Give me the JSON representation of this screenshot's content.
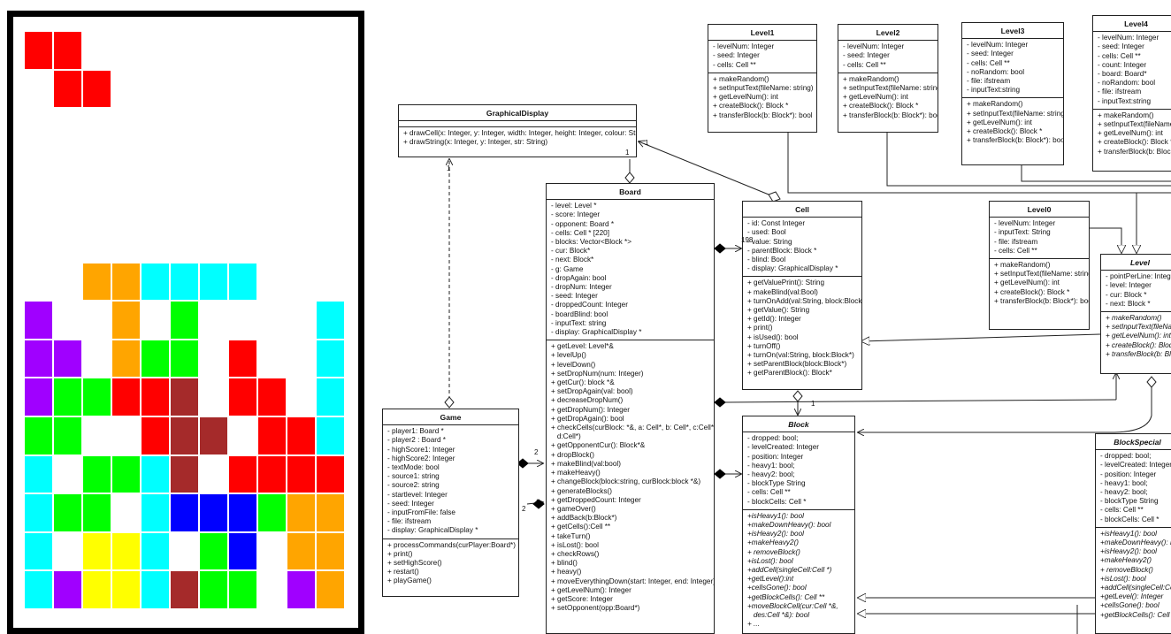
{
  "tetris": {
    "colors": {
      "red": "#ff0000",
      "orange": "#ffa500",
      "cyan": "#00ffff",
      "purple": "#a000ff",
      "green": "#00ff00",
      "darkred": "#a52a2a",
      "blue": "#0000ff",
      "yellow": "#ffff00"
    },
    "rows": [
      [
        "red",
        "red",
        "",
        "",
        "",
        "",
        "",
        "",
        "",
        "",
        ""
      ],
      [
        "",
        "red",
        "red",
        "",
        "",
        "",
        "",
        "",
        "",
        "",
        ""
      ],
      [
        "",
        "",
        "",
        "",
        "",
        "",
        "",
        "",
        "",
        "",
        ""
      ],
      [
        "",
        "",
        "",
        "",
        "",
        "",
        "",
        "",
        "",
        "",
        ""
      ],
      [
        "",
        "",
        "",
        "",
        "",
        "",
        "",
        "",
        "",
        "",
        ""
      ],
      [
        "",
        "",
        "",
        "",
        "",
        "",
        "",
        "",
        "",
        "",
        ""
      ],
      [
        "",
        "",
        "orange",
        "orange",
        "cyan",
        "cyan",
        "cyan",
        "cyan",
        "",
        "",
        ""
      ],
      [
        "purple",
        "",
        "",
        "orange",
        "",
        "green",
        "",
        "",
        "",
        "",
        "cyan"
      ],
      [
        "purple",
        "purple",
        "",
        "orange",
        "green",
        "green",
        "",
        "red",
        "",
        "",
        "cyan"
      ],
      [
        "purple",
        "green",
        "green",
        "red",
        "red",
        "darkred",
        "",
        "red",
        "red",
        "",
        "cyan"
      ],
      [
        "green",
        "green",
        "",
        "",
        "red",
        "darkred",
        "darkred",
        "",
        "red",
        "red",
        "cyan"
      ],
      [
        "cyan",
        "",
        "green",
        "green",
        "cyan",
        "darkred",
        "",
        "red",
        "red",
        "red",
        "red"
      ],
      [
        "cyan",
        "green",
        "green",
        "",
        "cyan",
        "blue",
        "blue",
        "blue",
        "green",
        "orange",
        "orange"
      ],
      [
        "cyan",
        "",
        "yellow",
        "yellow",
        "cyan",
        "",
        "green",
        "blue",
        "",
        "orange",
        "orange"
      ],
      [
        "cyan",
        "purple",
        "yellow",
        "yellow",
        "cyan",
        "darkred",
        "green",
        "green",
        "",
        "purple",
        "orange"
      ]
    ]
  },
  "classes": {
    "graphical": {
      "name": "GraphicalDisplay",
      "attrs": [],
      "methods": [
        "+ drawCell(x: Integer, y: Integer, width: Integer, height: Integer, colour: String)",
        "+ drawString(x: Integer, y: Integer, str: String)"
      ]
    },
    "board": {
      "name": "Board",
      "attrs": [
        "- level: Level *",
        "- score: Integer",
        "- opponent: Board *",
        "- cells: Cell * [220]",
        "- blocks: Vector<Block *>",
        "- cur: Block*",
        "- next: Block*",
        "- g: Game",
        "- dropAgain: bool",
        "- dropNum: Integer",
        "- seed: Integer",
        "- droppedCount: Integer",
        "- boardBlind: bool",
        "- inputText: string",
        "- display: GraphicalDisplay *"
      ],
      "methods": [
        "+ getLevel: Level*&",
        "+ levelUp()",
        "+ levelDown()",
        "+ setDropNum(num: Integer)",
        "+ getCur(): block *&",
        "+ setDropAgain(val: bool)",
        "+ decreaseDropNum()",
        "+ getDropNum(): Integer",
        "+ getDropAgain(): bool",
        "+ checkCells(curBlock: *&, a: Cell*, b: Cell*, c:Cell*,",
        "   d:Cell*)",
        "+ getOpponentCur(): Block*&",
        "+ dropBlock()",
        "+ makeBlind(val:bool)",
        "+ makeHeavy()",
        "+ changeBlock(block:string, curBlock:block *&)",
        "+ generateBlocks()",
        "+ getDroppedCount: Integer",
        "+ gameOver()",
        "+ addBack(b:Block*)",
        "+ getCells():Cell **",
        "+ takeTurn()",
        "+ isLost(): bool",
        "+ checkRows()",
        "+ blind()",
        "+ heavy()",
        "+ moveEverythingDown(start: Integer, end: Integer)",
        "+ getLevelNum(): Integer",
        "+ getScore: Integer",
        "+ setOpponent(opp:Board*)"
      ]
    },
    "game": {
      "name": "Game",
      "attrs": [
        "- player1: Board *",
        "- player2 : Board *",
        "- highScore1: Integer",
        "- highScore2: Integer",
        "- textMode: bool",
        "- source1: string",
        "- source2: string",
        "- startlevel: Integer",
        "- seed: Integer",
        "- inputFromFile: false",
        "- file: ifstream",
        "- display: GraphicalDisplay *"
      ],
      "methods": [
        "+ processCommands(curPlayer:Board*)",
        "+ print()",
        "+ setHighScore()",
        "+ restart()",
        "+ playGame()"
      ]
    },
    "cell": {
      "name": "Cell",
      "attrs": [
        "- id: Const Integer",
        "- used: Bool",
        "- value: String",
        "- parentBlock: Block *",
        "- blind: Bool",
        "- display: GraphicalDisplay *"
      ],
      "methods": [
        "+ getValuePrint(): String",
        "+ makeBlind(val:Bool)",
        "+ turnOnAdd(val:String, block:Block*)",
        "+ getValue(): String",
        "+ getId(): Integer",
        "+ print()",
        "+ isUsed(): bool",
        "+ turnOff()",
        "+ turnOn(val:String, block:Block*)",
        "+ setParentBlock(block:Block*)",
        "+ getParentBlock(): Block*"
      ]
    },
    "block": {
      "name": "Block",
      "attrs": [
        "- dropped: bool;",
        "- levelCreated: Integer",
        "- position: Integer",
        "- heavy1: bool;",
        "- heavy2: bool;",
        "- blockType String",
        "- cells: Cell **",
        "- blockCells: Cell *"
      ],
      "methods": [
        "+isHeavy1(): bool",
        "+makeDownHeavy(): bool",
        "+isHeavy2(): bool",
        "+makeHeavy2()",
        "+ removeBlock()",
        "+isLost(): bool",
        "+addCell(singleCell:Cell *)",
        "+getLevel():int",
        "+cellsGone(): bool",
        "+getBlockCells(): Cell **",
        "+moveBlockCell(cur:Cell *&,",
        "   des:Cell *&): bool",
        "+ ..."
      ]
    },
    "blockspecial": {
      "name": "BlockSpecial",
      "attrs": [
        "- dropped: bool;",
        "- levelCreated: Integer",
        "- position: Integer",
        "- heavy1: bool;",
        "- heavy2: bool;",
        "- blockType String",
        "- cells: Cell **",
        "- blockCells: Cell *"
      ],
      "methods": [
        "+isHeavy1(): bool",
        "+makeDownHeavy(): bool",
        "+isHeavy2(): bool",
        "+makeHeavy2()",
        "+ removeBlock()",
        "+isLost(): bool",
        "+addCell(singleCell:Cell *)",
        "+getLevel(): Integer",
        "+cellsGone(): bool",
        "+getBlockCells(): Cell **"
      ]
    },
    "level": {
      "name": "Level",
      "attrs": [
        "- pointPerLine: Integer",
        "- level: Integer",
        "- cur: Block *",
        "- next: Block *"
      ],
      "methods": [
        "+ makeRandom()",
        "+ setInputText(fileName: string)",
        "+ getLevelNum(): int",
        "+ createBlock(): Block *",
        "+ transferBlock(b: Block*): bool"
      ]
    },
    "level0": {
      "name": "Level0",
      "attrs": [
        "- levelNum: Integer",
        "- inputText: String",
        "- file: ifstream",
        "- cells: Cell **"
      ],
      "methods": [
        "+ makeRandom()",
        "+ setInputText(fileName: string)",
        "+ getLevelNum(): int",
        "+ createBlock(): Block *",
        "+ transferBlock(b: Block*): bool"
      ]
    },
    "level1": {
      "name": "Level1",
      "attrs": [
        "- levelNum: Integer",
        "- seed: Integer",
        "- cells: Cell **"
      ],
      "methods": [
        "+ makeRandom()",
        "+ setInputText(fileName: string)",
        "+ getLevelNum(): int",
        "+ createBlock(): Block *",
        "+ transferBlock(b: Block*): bool"
      ]
    },
    "level2": {
      "name": "Level2",
      "attrs": [
        "- levelNum: Integer",
        "- seed: Integer",
        "- cells: Cell **"
      ],
      "methods": [
        "+ makeRandom()",
        "+ setInputText(fileName: string)",
        "+ getLevelNum(): int",
        "+ createBlock(): Block *",
        "+ transferBlock(b: Block*): bool"
      ]
    },
    "level3": {
      "name": "Level3",
      "attrs": [
        "- levelNum: Integer",
        "- seed: Integer",
        "- cells: Cell **",
        "- noRandom: bool",
        "- file: ifstream",
        "- inputText:string"
      ],
      "methods": [
        "+ makeRandom()",
        "+ setInputText(fileName: string)",
        "+ getLevelNum(): int",
        "+ createBlock(): Block *",
        "+ transferBlock(b: Block*): bool"
      ]
    },
    "level4": {
      "name": "Level4",
      "attrs": [
        "- levelNum: Integer",
        "- seed: Integer",
        "- cells: Cell **",
        "- count: Integer",
        "- board: Board*",
        "- noRandom: bool",
        "- file: ifstream",
        "- inputText:string"
      ],
      "methods": [
        "+ makeRandom()",
        "+ setInputText(fileName:",
        "+ getLevelNum(): int",
        "+ createBlock(): Block *",
        "+ transferBlock(b: Block*)"
      ]
    }
  },
  "labels": {
    "one_a": "1",
    "one_b": "1",
    "one_c": "1",
    "one_d": "1",
    "n198": "198",
    "n2a": "2",
    "n2b": "2"
  }
}
